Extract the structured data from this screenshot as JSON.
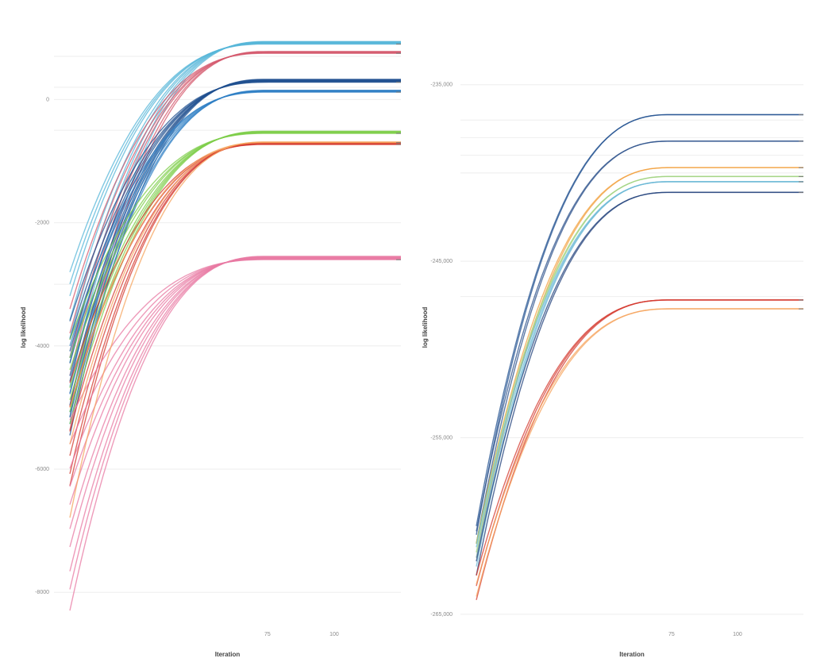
{
  "chart_data": [
    {
      "type": "line",
      "panel": "left",
      "xlabel": "Iteration",
      "ylabel": "log likelihood",
      "xlim": [
        1,
        125
      ],
      "ylim": [
        -8500,
        1100
      ],
      "x_ticks": [
        {
          "value": 75,
          "label": "75"
        },
        {
          "value": 100,
          "label": "100"
        }
      ],
      "y_ticks": [
        {
          "value": 0,
          "label": "0"
        },
        {
          "value": -2000,
          "label": "-2000"
        },
        {
          "value": -4000,
          "label": "-4000"
        },
        {
          "value": -6000,
          "label": "-6000"
        },
        {
          "value": -8000,
          "label": "-8000"
        }
      ],
      "plateau_x": 75,
      "gridlines": [
        700,
        200,
        -500,
        -3000
      ],
      "bundles": [
        {
          "color": "#55b5d8",
          "end": 900,
          "count": 8,
          "starts": [
            -2800,
            -3000,
            -3200,
            -3600,
            -3900,
            -4300,
            -4700,
            -5200
          ]
        },
        {
          "color": "#d45a6e",
          "end": 750,
          "count": 6,
          "starts": [
            -3400,
            -3800,
            -4200,
            -4500,
            -5000,
            -5400
          ]
        },
        {
          "color": "#1f4f8f",
          "end": 280,
          "count": 9,
          "starts": [
            -3600,
            -3900,
            -4100,
            -4300,
            -4600,
            -4800,
            -5000,
            -5200,
            -5500
          ]
        },
        {
          "color": "#2f7fc4",
          "end": 120,
          "count": 6,
          "starts": [
            -4000,
            -4200,
            -4500,
            -4800,
            -5100,
            -5300
          ]
        },
        {
          "color": "#7dce4a",
          "end": -550,
          "count": 7,
          "starts": [
            -3900,
            -4200,
            -4400,
            -4700,
            -4900,
            -5100,
            -5300
          ]
        },
        {
          "color": "#d43a2f",
          "end": -730,
          "count": 6,
          "starts": [
            -4600,
            -5000,
            -5400,
            -5800,
            -6100,
            -6300
          ]
        },
        {
          "color": "#e879a3",
          "end": -2600,
          "count": 10,
          "starts": [
            -5200,
            -5600,
            -6000,
            -6300,
            -6600,
            -7000,
            -7300,
            -7700,
            -8000,
            -8350
          ]
        },
        {
          "color": "#f5a35c",
          "end": -700,
          "count": 3,
          "starts": [
            -5000,
            -5600,
            -6800
          ]
        }
      ]
    },
    {
      "type": "line",
      "panel": "right",
      "xlabel": "Iteration",
      "ylabel": "log likelihood",
      "xlim": [
        1,
        125
      ],
      "ylim": [
        -265500,
        -232000
      ],
      "x_ticks": [
        {
          "value": 75,
          "label": "75"
        },
        {
          "value": 100,
          "label": "100"
        }
      ],
      "y_ticks": [
        {
          "value": -235000,
          "label": "-235,000"
        },
        {
          "value": -245000,
          "label": "-245,000"
        },
        {
          "value": -255000,
          "label": "-255,000"
        },
        {
          "value": -265000,
          "label": "-265,000"
        }
      ],
      "plateau_x": 75,
      "gridlines": [
        -237000,
        -238000,
        -239000,
        -240000,
        -247000
      ],
      "bundles": [
        {
          "color": "#1f4f8f",
          "end": -236700,
          "count": 2,
          "starts": [
            -260000,
            -260500
          ]
        },
        {
          "color": "#2a4f8a",
          "end": -238200,
          "count": 2,
          "starts": [
            -260300,
            -261000
          ]
        },
        {
          "color": "#f2a03d",
          "end": -239700,
          "count": 2,
          "starts": [
            -261000,
            -261800
          ]
        },
        {
          "color": "#9fd27e",
          "end": -240200,
          "count": 2,
          "starts": [
            -261000,
            -261500
          ]
        },
        {
          "color": "#6bb8d6",
          "end": -240500,
          "count": 3,
          "starts": [
            -261200,
            -261800,
            -262300
          ]
        },
        {
          "color": "#1f3f7a",
          "end": -241100,
          "count": 2,
          "starts": [
            -262000,
            -262800
          ]
        },
        {
          "color": "#d43a2f",
          "end": -247200,
          "count": 3,
          "starts": [
            -262800,
            -263400,
            -264200
          ]
        },
        {
          "color": "#f5a35c",
          "end": -247700,
          "count": 2,
          "starts": [
            -263300,
            -264000
          ]
        }
      ]
    }
  ]
}
